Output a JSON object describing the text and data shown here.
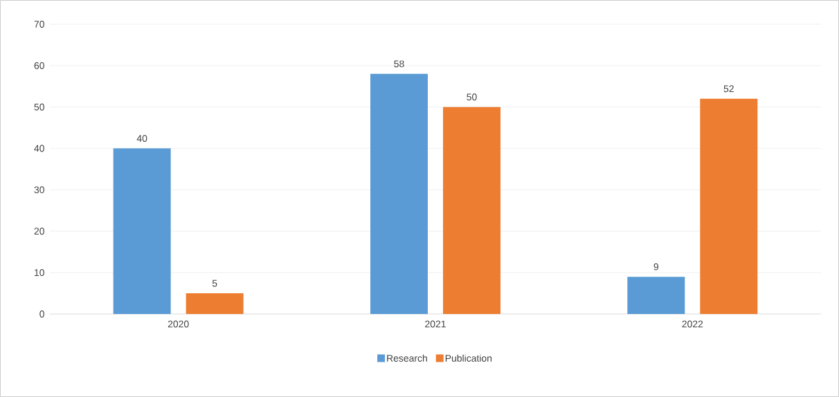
{
  "chart_data": {
    "type": "bar",
    "categories": [
      "2020",
      "2021",
      "2022"
    ],
    "series": [
      {
        "name": "Research",
        "color": "#5b9bd5",
        "values": [
          40,
          58,
          9
        ]
      },
      {
        "name": "Publication",
        "color": "#ed7d31",
        "values": [
          5,
          50,
          52
        ]
      }
    ],
    "ylim": [
      0,
      70
    ],
    "yticks": [
      0,
      10,
      20,
      30,
      40,
      50,
      60,
      70
    ],
    "grid": "y",
    "legend": "bottom",
    "data_labels": true
  }
}
